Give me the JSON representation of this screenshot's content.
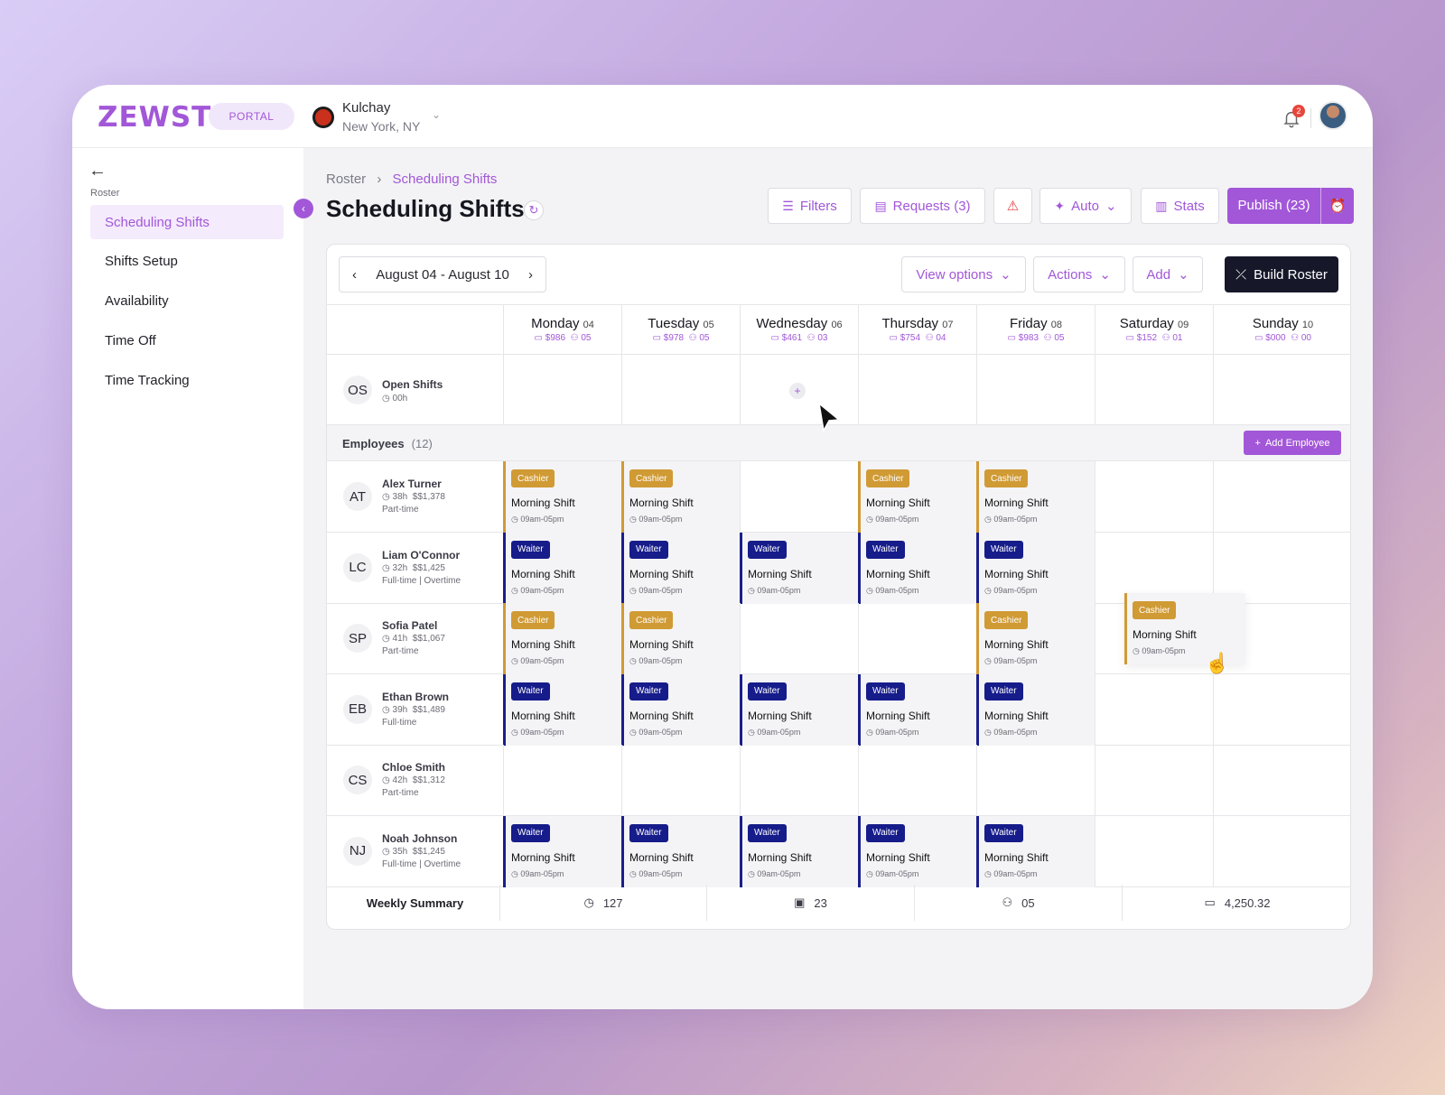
{
  "brand": {
    "logo": "ZEWST",
    "portal": "PORTAL"
  },
  "location": {
    "name": "Kulchay",
    "city": "New York, NY"
  },
  "notifications": {
    "count": "2"
  },
  "sidebar": {
    "section": "Roster",
    "items": [
      {
        "label": "Scheduling Shifts",
        "active": true
      },
      {
        "label": "Shifts Setup"
      },
      {
        "label": "Availability"
      },
      {
        "label": "Time Off"
      },
      {
        "label": "Time Tracking"
      }
    ]
  },
  "breadcrumb": {
    "root": "Roster",
    "current": "Scheduling Shifts"
  },
  "page": {
    "title": "Scheduling Shifts"
  },
  "header_buttons": {
    "filters": "Filters",
    "requests": "Requests (3)",
    "auto": "Auto",
    "stats": "Stats",
    "publish": "Publish (23)"
  },
  "toolbar": {
    "week": "August 04 - August 10",
    "view_options": "View options",
    "actions": "Actions",
    "add": "Add",
    "build": "Build Roster"
  },
  "days": [
    {
      "name": "Monday",
      "num": "04",
      "cost": "$986",
      "staff": "05"
    },
    {
      "name": "Tuesday",
      "num": "05",
      "cost": "$978",
      "staff": "05"
    },
    {
      "name": "Wednesday",
      "num": "06",
      "cost": "$461",
      "staff": "03"
    },
    {
      "name": "Thursday",
      "num": "07",
      "cost": "$754",
      "staff": "04"
    },
    {
      "name": "Friday",
      "num": "08",
      "cost": "$983",
      "staff": "05"
    },
    {
      "name": "Saturday",
      "num": "09",
      "cost": "$152",
      "staff": "01"
    },
    {
      "name": "Sunday",
      "num": "10",
      "cost": "$000",
      "staff": "00"
    }
  ],
  "open_shifts": {
    "initials": "OS",
    "label": "Open Shifts",
    "hours": "00h"
  },
  "employees_header": {
    "label": "Employees",
    "count": "(12)",
    "add": "Add Employee"
  },
  "shift_name": "Morning Shift",
  "shift_time": "09am-05pm",
  "employees": [
    {
      "initials": "AT",
      "name": "Alex Turner",
      "hours": "38h",
      "pay": "$1,378",
      "type": "Part-time",
      "shifts": [
        "Cashier",
        "Cashier",
        null,
        "Cashier",
        "Cashier",
        null,
        null
      ]
    },
    {
      "initials": "LC",
      "name": "Liam O'Connor",
      "hours": "32h",
      "pay": "$1,425",
      "type": "Full-time | Overtime",
      "shifts": [
        "Waiter",
        "Waiter",
        "Waiter",
        "Waiter",
        "Waiter",
        null,
        null
      ]
    },
    {
      "initials": "SP",
      "name": "Sofia Patel",
      "hours": "41h",
      "pay": "$1,067",
      "type": "Part-time",
      "shifts": [
        "Cashier",
        "Cashier",
        null,
        null,
        "Cashier",
        null,
        null
      ]
    },
    {
      "initials": "EB",
      "name": "Ethan Brown",
      "hours": "39h",
      "pay": "$1,489",
      "type": "Full-time",
      "shifts": [
        "Waiter",
        "Waiter",
        "Waiter",
        "Waiter",
        "Waiter",
        null,
        null
      ]
    },
    {
      "initials": "CS",
      "name": "Chloe Smith",
      "hours": "42h",
      "pay": "$1,312",
      "type": "Part-time",
      "shifts": [
        null,
        null,
        null,
        null,
        null,
        null,
        null
      ]
    },
    {
      "initials": "NJ",
      "name": "Noah Johnson",
      "hours": "35h",
      "pay": "$1,245",
      "type": "Full-time | Overtime",
      "shifts": [
        "Waiter",
        "Waiter",
        "Waiter",
        "Waiter",
        "Waiter",
        null,
        null
      ]
    }
  ],
  "dragging_shift": {
    "role": "Cashier",
    "name": "Morning Shift",
    "time": "09am-05pm"
  },
  "summary": {
    "label": "Weekly Summary",
    "hours": "127",
    "shifts": "23",
    "staff": "05",
    "cost": "4,250.32"
  },
  "colors": {
    "accent": "#a257d8",
    "cashier": "#d09a34",
    "waiter": "#161c8a"
  }
}
